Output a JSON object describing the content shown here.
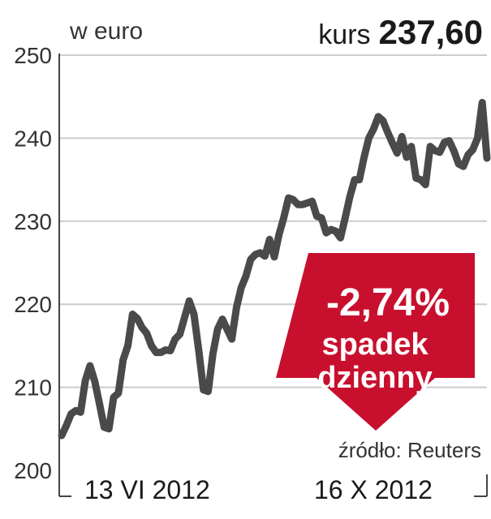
{
  "header": {
    "unit_label": "w euro",
    "price_label": "kurs",
    "price_value": "237,60"
  },
  "badge": {
    "change": "-2,74%",
    "line1": "spadek",
    "line2": "dzienny",
    "color": "#c8102e"
  },
  "source": "źródło: Reuters",
  "colors": {
    "line": "#4a4a4a",
    "grid": "#cccccc"
  },
  "chart_data": {
    "type": "line",
    "ylabel": "w euro",
    "ylim": [
      200,
      250
    ],
    "yticks": [
      200,
      210,
      220,
      230,
      240,
      250
    ],
    "xtick_labels": [
      "13 VI 2012",
      "16 X 2012"
    ],
    "grid": true,
    "series": [
      {
        "values": [
          204.2,
          205.4,
          206.8,
          207.2,
          207.0,
          210.8,
          212.6,
          210.7,
          208.0,
          205.2,
          205.0,
          208.8,
          209.3,
          213.3,
          215.0,
          218.8,
          218.3,
          217.2,
          216.5,
          215.0,
          214.2,
          214.2,
          214.5,
          214.4,
          215.8,
          216.4,
          218.4,
          220.4,
          218.8,
          214.5,
          209.7,
          209.5,
          214.0,
          217.0,
          218.2,
          217.0,
          215.8,
          219.6,
          222.0,
          223.4,
          225.4,
          226.0,
          226.2,
          225.8,
          227.8,
          225.7,
          228.4,
          230.4,
          232.8,
          232.6,
          232.0,
          232.0,
          232.2,
          232.4,
          230.6,
          230.4,
          228.6,
          229.0,
          228.8,
          228.0,
          230.4,
          233.0,
          235.0,
          235.0,
          237.7,
          240.0,
          241.1,
          242.6,
          242.1,
          240.7,
          239.4,
          238.2,
          240.2,
          237.7,
          239.0,
          235.2,
          235.0,
          234.4,
          239.0,
          238.5,
          238.3,
          239.5,
          239.7,
          238.5,
          236.9,
          236.6,
          238.0,
          238.6,
          240.0,
          244.3,
          237.6
        ]
      }
    ]
  }
}
